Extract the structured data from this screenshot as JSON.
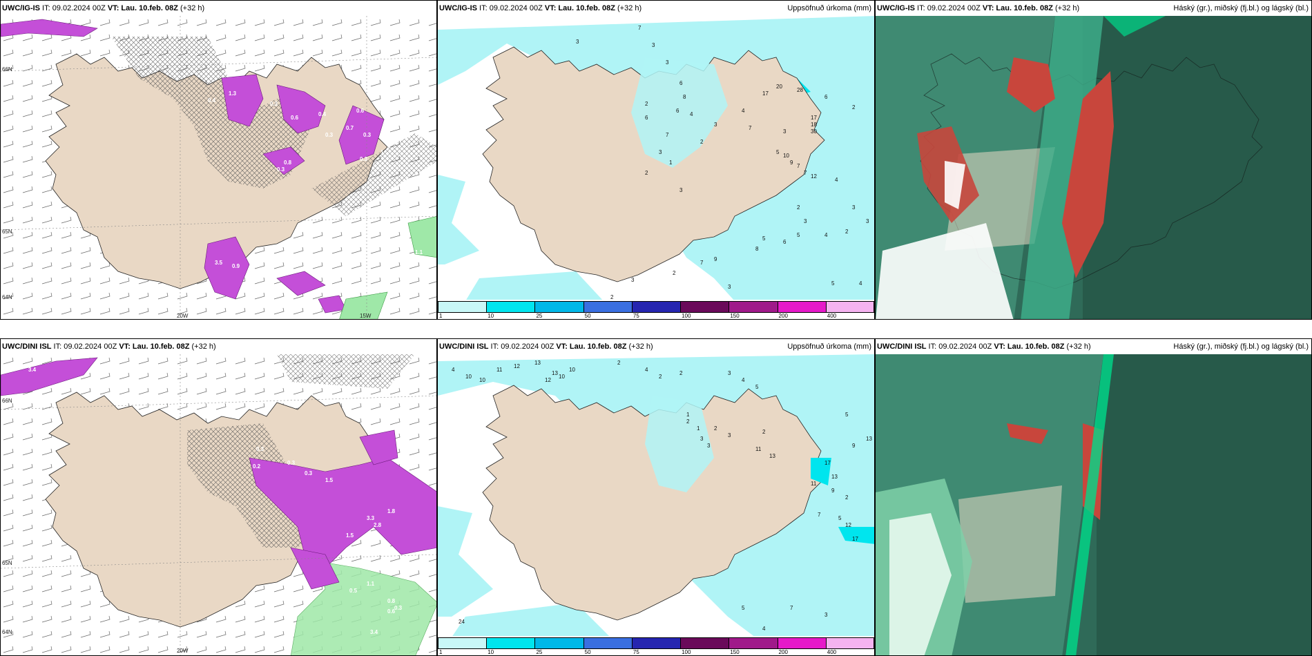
{
  "panels": [
    {
      "left": "UWC/IG-IS",
      "it": " IT: 09.02.2024 00Z ",
      "vt_label": "VT:",
      "vt": " Lau. 10.feb. 08Z",
      "lead": " (+32 h)",
      "right": "",
      "lat_labels": [
        "66N",
        "65N",
        "64N"
      ],
      "lon_labels": [
        "20W",
        "15W"
      ],
      "precip_labels": [
        "0.5",
        "0.4",
        "1.3",
        "0.3",
        "0.6",
        "0.4",
        "0.3",
        "0.6",
        "0.3",
        "0.7",
        "1",
        "0.3",
        "0.8",
        "0.3",
        "3.5",
        "0.9",
        "2.8",
        "2.4",
        "0.5",
        "0.3",
        "0.3",
        "1.1",
        "0.6"
      ]
    },
    {
      "left": "UWC/IG-IS",
      "it": " IT: 09.02.2024 00Z ",
      "vt_label": "VT:",
      "vt": " Lau. 10.feb. 08Z",
      "lead": " (+32 h)",
      "right": "Uppsöfnuð úrkoma (mm)",
      "precip_labels": [
        "3",
        "7",
        "3",
        "3",
        "6",
        "2",
        "6",
        "8",
        "4",
        "6",
        "7",
        "17",
        "20",
        "28",
        "4",
        "3",
        "2",
        "3",
        "1",
        "2",
        "3",
        "7",
        "17",
        "18",
        "30",
        "6",
        "2",
        "3",
        "5",
        "10",
        "9",
        "7",
        "7",
        "12",
        "4",
        "2",
        "3",
        "3",
        "2",
        "4",
        "3",
        "5",
        "6",
        "5",
        "8",
        "9",
        "7",
        "2",
        "3",
        "2",
        "4",
        "5",
        "3",
        "4"
      ]
    },
    {
      "left": "UWC/IG-IS",
      "it": " IT: 09.02.2024 00Z ",
      "vt_label": "VT:",
      "vt": " Lau. 10.feb. 08Z",
      "lead": " (+32 h)",
      "right": "Háský (gr.), miðský (fj.bl.) og lágský (bl.)"
    },
    {
      "left": "UWC/DINI ISL",
      "it": " IT: 09.02.2024 00Z ",
      "vt_label": "VT:",
      "vt": " Lau. 10.feb. 08Z",
      "lead": " (+32 h)",
      "right": "",
      "lat_labels": [
        "66N",
        "65N",
        "64N"
      ],
      "lon_labels": [
        "20W"
      ],
      "precip_labels": [
        "3.4",
        "0.3",
        "0.2",
        "0.3",
        "0.3",
        "1.5",
        "1.8",
        "2.8",
        "3.3",
        "1.5",
        "0.5",
        "1.1",
        "0.8",
        "0.3",
        "0.6",
        "3.4"
      ]
    },
    {
      "left": "UWC/DINI ISL",
      "it": " IT: 09.02.2024 00Z ",
      "vt_label": "VT:",
      "vt": " Lau. 10.feb. 08Z",
      "lead": " (+32 h)",
      "right": "Uppsöfnuð úrkoma (mm)",
      "precip_labels": [
        "4",
        "10",
        "10",
        "11",
        "12",
        "13",
        "13",
        "10",
        "12",
        "10",
        "2",
        "4",
        "2",
        "2",
        "3",
        "4",
        "5",
        "1",
        "2",
        "2",
        "1",
        "3",
        "3",
        "3",
        "2",
        "11",
        "13",
        "5",
        "13",
        "9",
        "17",
        "13",
        "11",
        "9",
        "2",
        "7",
        "5",
        "12",
        "17",
        "5",
        "4",
        "7",
        "3",
        "24"
      ]
    },
    {
      "left": "UWC/DINI ISL",
      "it": " IT: 09.02.2024 00Z ",
      "vt_label": "VT:",
      "vt": " Lau. 10.feb. 08Z",
      "lead": " (+32 h)",
      "right": "Háský (gr.), miðský (fj.bl.) og lágský (bl.)"
    }
  ],
  "colorbar": {
    "ticks": [
      "1",
      "10",
      "25",
      "50",
      "75",
      "100",
      "150",
      "200",
      "400"
    ],
    "colors": [
      "#c8f7f7",
      "#00e5ee",
      "#00b8e8",
      "#3a6fe0",
      "#2626b0",
      "#6a0a5a",
      "#a01a8a",
      "#e619c9",
      "#f5b3f0"
    ]
  },
  "colors": {
    "land": "#e9d8c5",
    "precip_light": "#b0f4f6",
    "snow_purple": "#c44fd8",
    "cloud_high": "#2f8a6e",
    "cloud_dark": "#275a4a",
    "cloud_red": "#c8463c"
  }
}
